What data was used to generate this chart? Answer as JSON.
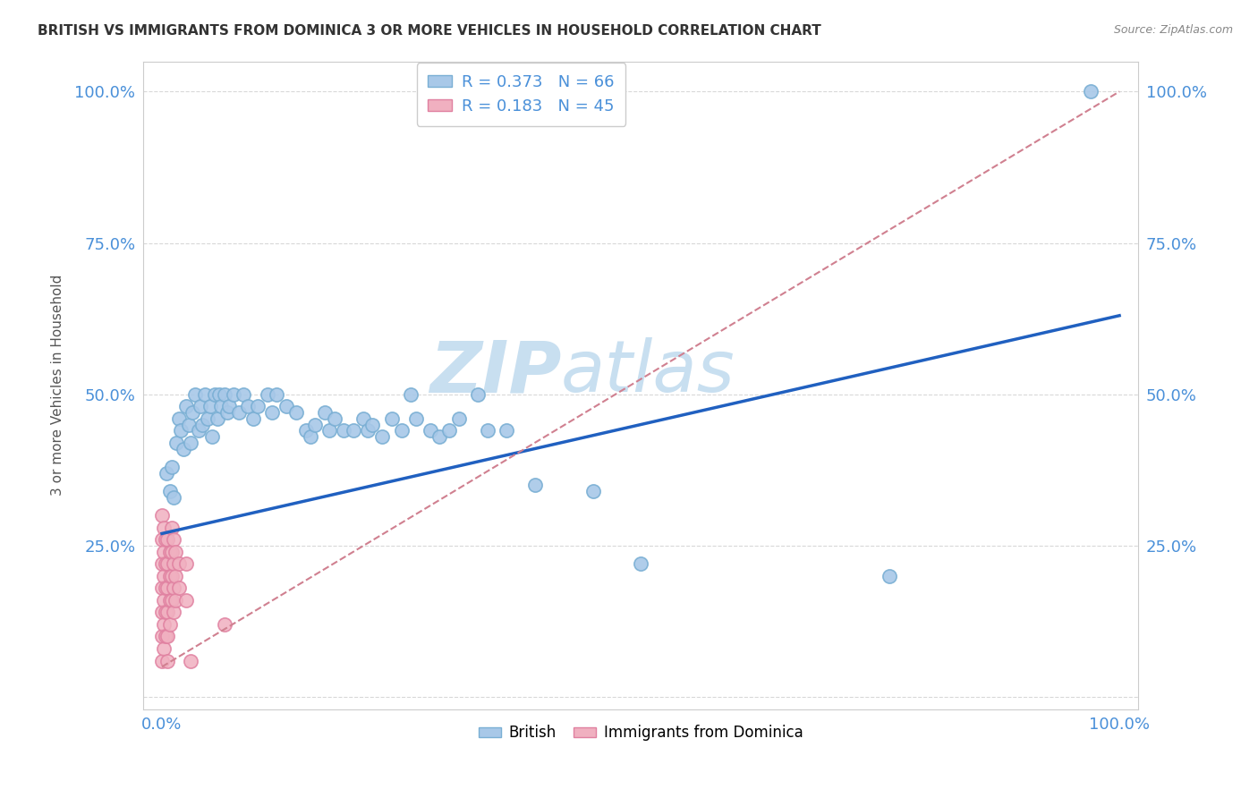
{
  "title": "BRITISH VS IMMIGRANTS FROM DOMINICA 3 OR MORE VEHICLES IN HOUSEHOLD CORRELATION CHART",
  "source": "Source: ZipAtlas.com",
  "ylabel": "3 or more Vehicles in Household",
  "xlim": [
    -0.02,
    1.02
  ],
  "ylim": [
    -0.02,
    1.05
  ],
  "xtick_labels": [
    "0.0%",
    "100.0%"
  ],
  "ytick_labels": [
    "",
    "25.0%",
    "50.0%",
    "75.0%",
    "100.0%"
  ],
  "right_ytick_labels": [
    "",
    "25.0%",
    "50.0%",
    "75.0%",
    "100.0%"
  ],
  "xtick_positions": [
    0.0,
    1.0
  ],
  "ytick_positions": [
    0.0,
    0.25,
    0.5,
    0.75,
    1.0
  ],
  "british_color": "#a8c8e8",
  "british_edge_color": "#7aafd4",
  "dominica_color": "#f0b0c0",
  "dominica_edge_color": "#e080a0",
  "british_line_color": "#2060c0",
  "dominica_line_color": "#d08090",
  "watermark_zip": "ZIP",
  "watermark_atlas": "atlas",
  "watermark_color": "#c8dff0",
  "british_R": 0.373,
  "dominica_R": 0.183,
  "british_N": 66,
  "dominica_N": 45,
  "british_scatter": [
    [
      0.005,
      0.37
    ],
    [
      0.008,
      0.34
    ],
    [
      0.01,
      0.38
    ],
    [
      0.012,
      0.33
    ],
    [
      0.015,
      0.42
    ],
    [
      0.018,
      0.46
    ],
    [
      0.02,
      0.44
    ],
    [
      0.022,
      0.41
    ],
    [
      0.025,
      0.48
    ],
    [
      0.028,
      0.45
    ],
    [
      0.03,
      0.42
    ],
    [
      0.032,
      0.47
    ],
    [
      0.035,
      0.5
    ],
    [
      0.038,
      0.44
    ],
    [
      0.04,
      0.48
    ],
    [
      0.042,
      0.45
    ],
    [
      0.045,
      0.5
    ],
    [
      0.048,
      0.46
    ],
    [
      0.05,
      0.48
    ],
    [
      0.052,
      0.43
    ],
    [
      0.055,
      0.5
    ],
    [
      0.058,
      0.46
    ],
    [
      0.06,
      0.5
    ],
    [
      0.062,
      0.48
    ],
    [
      0.065,
      0.5
    ],
    [
      0.068,
      0.47
    ],
    [
      0.07,
      0.48
    ],
    [
      0.075,
      0.5
    ],
    [
      0.08,
      0.47
    ],
    [
      0.085,
      0.5
    ],
    [
      0.09,
      0.48
    ],
    [
      0.095,
      0.46
    ],
    [
      0.1,
      0.48
    ],
    [
      0.11,
      0.5
    ],
    [
      0.115,
      0.47
    ],
    [
      0.12,
      0.5
    ],
    [
      0.13,
      0.48
    ],
    [
      0.14,
      0.47
    ],
    [
      0.15,
      0.44
    ],
    [
      0.155,
      0.43
    ],
    [
      0.16,
      0.45
    ],
    [
      0.17,
      0.47
    ],
    [
      0.175,
      0.44
    ],
    [
      0.18,
      0.46
    ],
    [
      0.19,
      0.44
    ],
    [
      0.2,
      0.44
    ],
    [
      0.21,
      0.46
    ],
    [
      0.215,
      0.44
    ],
    [
      0.22,
      0.45
    ],
    [
      0.23,
      0.43
    ],
    [
      0.24,
      0.46
    ],
    [
      0.25,
      0.44
    ],
    [
      0.26,
      0.5
    ],
    [
      0.265,
      0.46
    ],
    [
      0.28,
      0.44
    ],
    [
      0.29,
      0.43
    ],
    [
      0.3,
      0.44
    ],
    [
      0.31,
      0.46
    ],
    [
      0.33,
      0.5
    ],
    [
      0.34,
      0.44
    ],
    [
      0.36,
      0.44
    ],
    [
      0.39,
      0.35
    ],
    [
      0.45,
      0.34
    ],
    [
      0.5,
      0.22
    ],
    [
      0.76,
      0.2
    ],
    [
      0.97,
      1.0
    ]
  ],
  "dominica_scatter": [
    [
      0.0,
      0.3
    ],
    [
      0.0,
      0.26
    ],
    [
      0.0,
      0.22
    ],
    [
      0.0,
      0.18
    ],
    [
      0.0,
      0.14
    ],
    [
      0.0,
      0.1
    ],
    [
      0.0,
      0.06
    ],
    [
      0.002,
      0.28
    ],
    [
      0.002,
      0.24
    ],
    [
      0.002,
      0.2
    ],
    [
      0.002,
      0.16
    ],
    [
      0.002,
      0.12
    ],
    [
      0.002,
      0.08
    ],
    [
      0.004,
      0.26
    ],
    [
      0.004,
      0.22
    ],
    [
      0.004,
      0.18
    ],
    [
      0.004,
      0.14
    ],
    [
      0.004,
      0.1
    ],
    [
      0.006,
      0.26
    ],
    [
      0.006,
      0.22
    ],
    [
      0.006,
      0.18
    ],
    [
      0.006,
      0.14
    ],
    [
      0.006,
      0.1
    ],
    [
      0.006,
      0.06
    ],
    [
      0.008,
      0.24
    ],
    [
      0.008,
      0.2
    ],
    [
      0.008,
      0.16
    ],
    [
      0.008,
      0.12
    ],
    [
      0.01,
      0.28
    ],
    [
      0.01,
      0.24
    ],
    [
      0.01,
      0.2
    ],
    [
      0.01,
      0.16
    ],
    [
      0.012,
      0.26
    ],
    [
      0.012,
      0.22
    ],
    [
      0.012,
      0.18
    ],
    [
      0.012,
      0.14
    ],
    [
      0.014,
      0.24
    ],
    [
      0.014,
      0.2
    ],
    [
      0.014,
      0.16
    ],
    [
      0.018,
      0.22
    ],
    [
      0.018,
      0.18
    ],
    [
      0.025,
      0.22
    ],
    [
      0.025,
      0.16
    ],
    [
      0.03,
      0.06
    ],
    [
      0.065,
      0.12
    ]
  ],
  "british_line": [
    [
      0.0,
      0.27
    ],
    [
      1.0,
      0.63
    ]
  ],
  "dominica_line": [
    [
      0.0,
      0.05
    ],
    [
      1.0,
      1.0
    ]
  ],
  "background_color": "#ffffff",
  "grid_color": "#d8d8d8",
  "title_color": "#333333",
  "axis_tick_color": "#4a90d9"
}
